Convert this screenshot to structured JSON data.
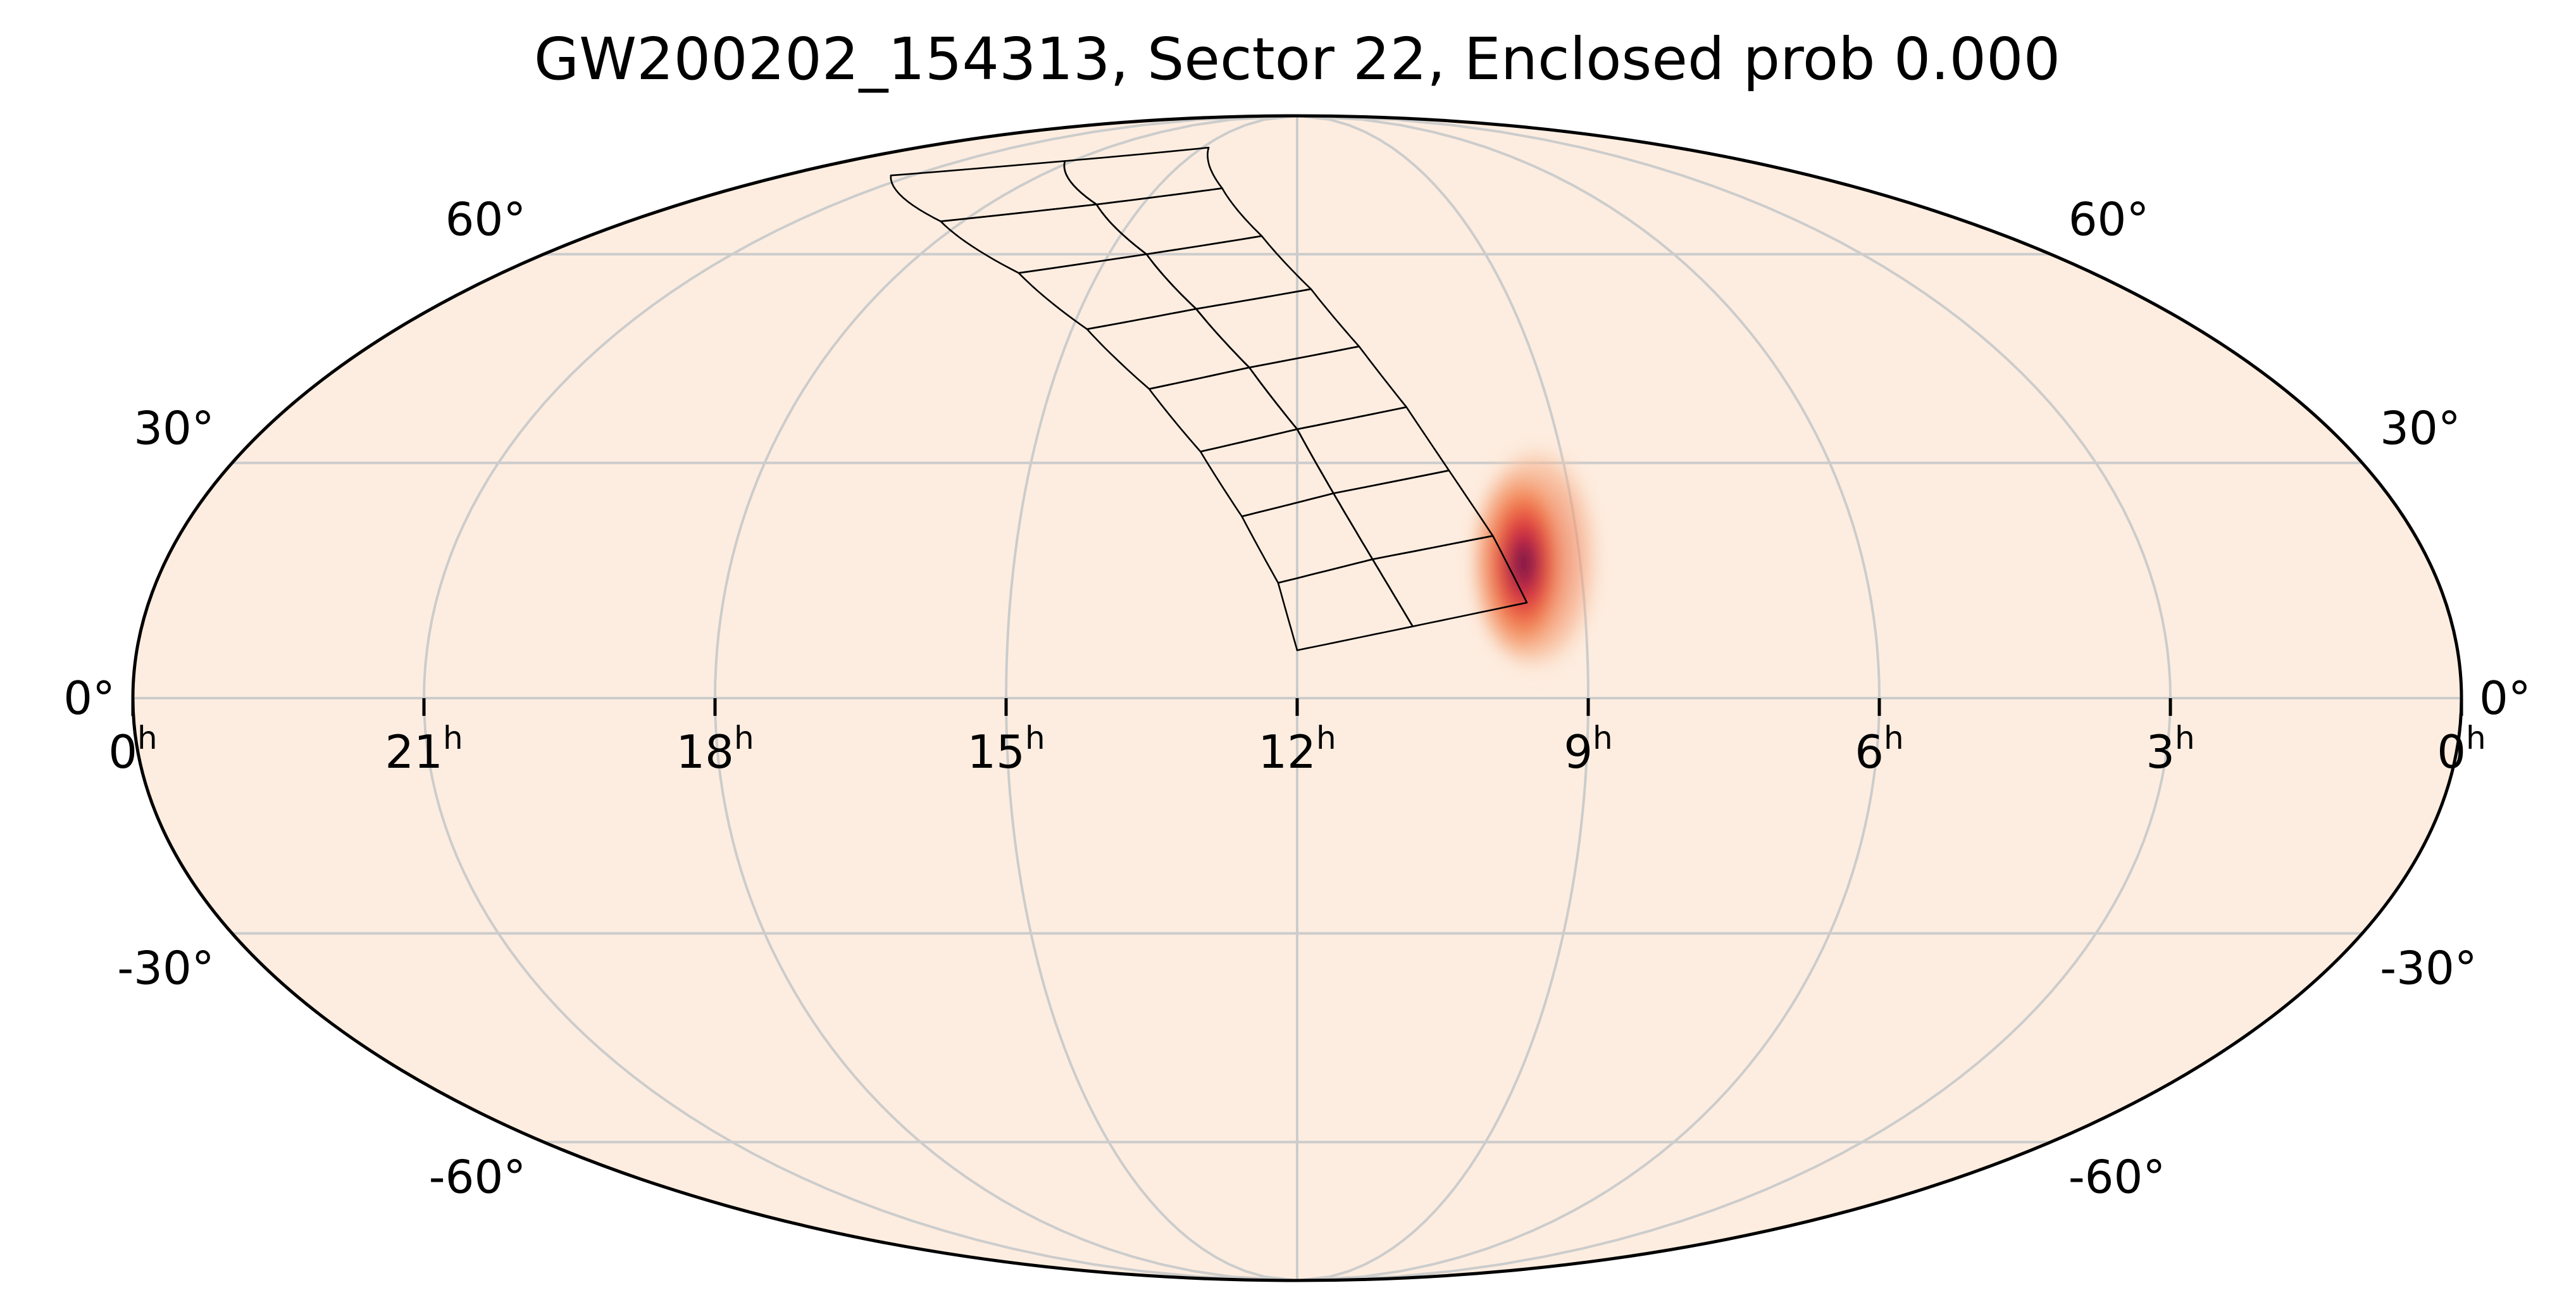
{
  "chart_data": {
    "type": "heatmap",
    "projection": "mollweide",
    "title": "GW200202_154313, Sector 22, Enclosed prob 0.000",
    "ra_tick_labels": [
      {
        "base": "0",
        "sup": "h",
        "ra_hours": 24
      },
      {
        "base": "21",
        "sup": "h",
        "ra_hours": 21
      },
      {
        "base": "18",
        "sup": "h",
        "ra_hours": 18
      },
      {
        "base": "15",
        "sup": "h",
        "ra_hours": 15
      },
      {
        "base": "12",
        "sup": "h",
        "ra_hours": 12
      },
      {
        "base": "9",
        "sup": "h",
        "ra_hours": 9
      },
      {
        "base": "6",
        "sup": "h",
        "ra_hours": 6
      },
      {
        "base": "3",
        "sup": "h",
        "ra_hours": 3
      },
      {
        "base": "0",
        "sup": "h",
        "ra_hours": 0
      }
    ],
    "dec_tick_labels_left": [
      "60°",
      "30°",
      "0°",
      "-30°",
      "-60°"
    ],
    "dec_tick_labels_right": [
      "60°",
      "30°",
      "0°",
      "-30°",
      "-60°"
    ],
    "dec_gridlines_deg": [
      60,
      30,
      0,
      -30,
      -60
    ],
    "ra_gridlines_hours": [
      21,
      18,
      15,
      12,
      9,
      6,
      3
    ],
    "ra_range_hours": [
      0,
      24
    ],
    "dec_range_deg": [
      -90,
      90
    ],
    "grid": true,
    "colormap": "rocket (light → dark red)",
    "background_color": "#fdede0",
    "probability_peak": {
      "ra_hours": 9.6,
      "dec_deg": 17,
      "sigma_ra_hours": 0.25,
      "sigma_dec_deg": 6
    },
    "sector_footprint_ccds": [
      [
        [
          12.0,
          6.0
        ],
        [
          10.8,
          9.0
        ],
        [
          11.2,
          17.5
        ],
        [
          12.2,
          14.5
        ]
      ],
      [
        [
          10.8,
          9.0
        ],
        [
          9.6,
          12.0
        ],
        [
          9.9,
          20.5
        ],
        [
          11.2,
          17.5
        ]
      ],
      [
        [
          12.2,
          14.5
        ],
        [
          11.2,
          17.5
        ],
        [
          11.6,
          26.0
        ],
        [
          12.6,
          23.0
        ]
      ],
      [
        [
          11.2,
          17.5
        ],
        [
          9.9,
          20.5
        ],
        [
          10.3,
          29.0
        ],
        [
          11.6,
          26.0
        ]
      ],
      [
        [
          12.6,
          23.0
        ],
        [
          11.6,
          26.0
        ],
        [
          12.0,
          34.5
        ],
        [
          13.1,
          31.5
        ]
      ],
      [
        [
          11.6,
          26.0
        ],
        [
          10.3,
          29.0
        ],
        [
          10.7,
          37.5
        ],
        [
          12.0,
          34.5
        ]
      ],
      [
        [
          13.1,
          31.5
        ],
        [
          12.0,
          34.5
        ],
        [
          12.6,
          43.0
        ],
        [
          13.8,
          40.0
        ]
      ],
      [
        [
          12.0,
          34.5
        ],
        [
          10.7,
          37.5
        ],
        [
          11.2,
          46.0
        ],
        [
          12.6,
          43.0
        ]
      ],
      [
        [
          13.8,
          40.0
        ],
        [
          12.6,
          43.0
        ],
        [
          13.4,
          51.5
        ],
        [
          14.8,
          48.5
        ]
      ],
      [
        [
          12.6,
          43.0
        ],
        [
          11.2,
          46.0
        ],
        [
          11.8,
          54.5
        ],
        [
          13.4,
          51.5
        ]
      ],
      [
        [
          14.8,
          48.5
        ],
        [
          13.4,
          51.5
        ],
        [
          14.4,
          60.0
        ],
        [
          16.2,
          57.0
        ]
      ],
      [
        [
          13.4,
          51.5
        ],
        [
          11.8,
          54.5
        ],
        [
          12.6,
          63.0
        ],
        [
          14.4,
          60.0
        ]
      ],
      [
        [
          16.2,
          57.0
        ],
        [
          14.4,
          60.0
        ],
        [
          15.9,
          68.5
        ],
        [
          18.4,
          65.5
        ]
      ],
      [
        [
          14.4,
          60.0
        ],
        [
          12.6,
          63.0
        ],
        [
          13.6,
          71.5
        ],
        [
          15.9,
          68.5
        ]
      ],
      [
        [
          18.4,
          65.5
        ],
        [
          15.9,
          68.5
        ],
        [
          18.2,
          77.0
        ],
        [
          21.5,
          74.0
        ]
      ],
      [
        [
          15.9,
          68.5
        ],
        [
          13.6,
          71.5
        ],
        [
          14.8,
          80.0
        ],
        [
          18.2,
          77.0
        ]
      ]
    ]
  }
}
